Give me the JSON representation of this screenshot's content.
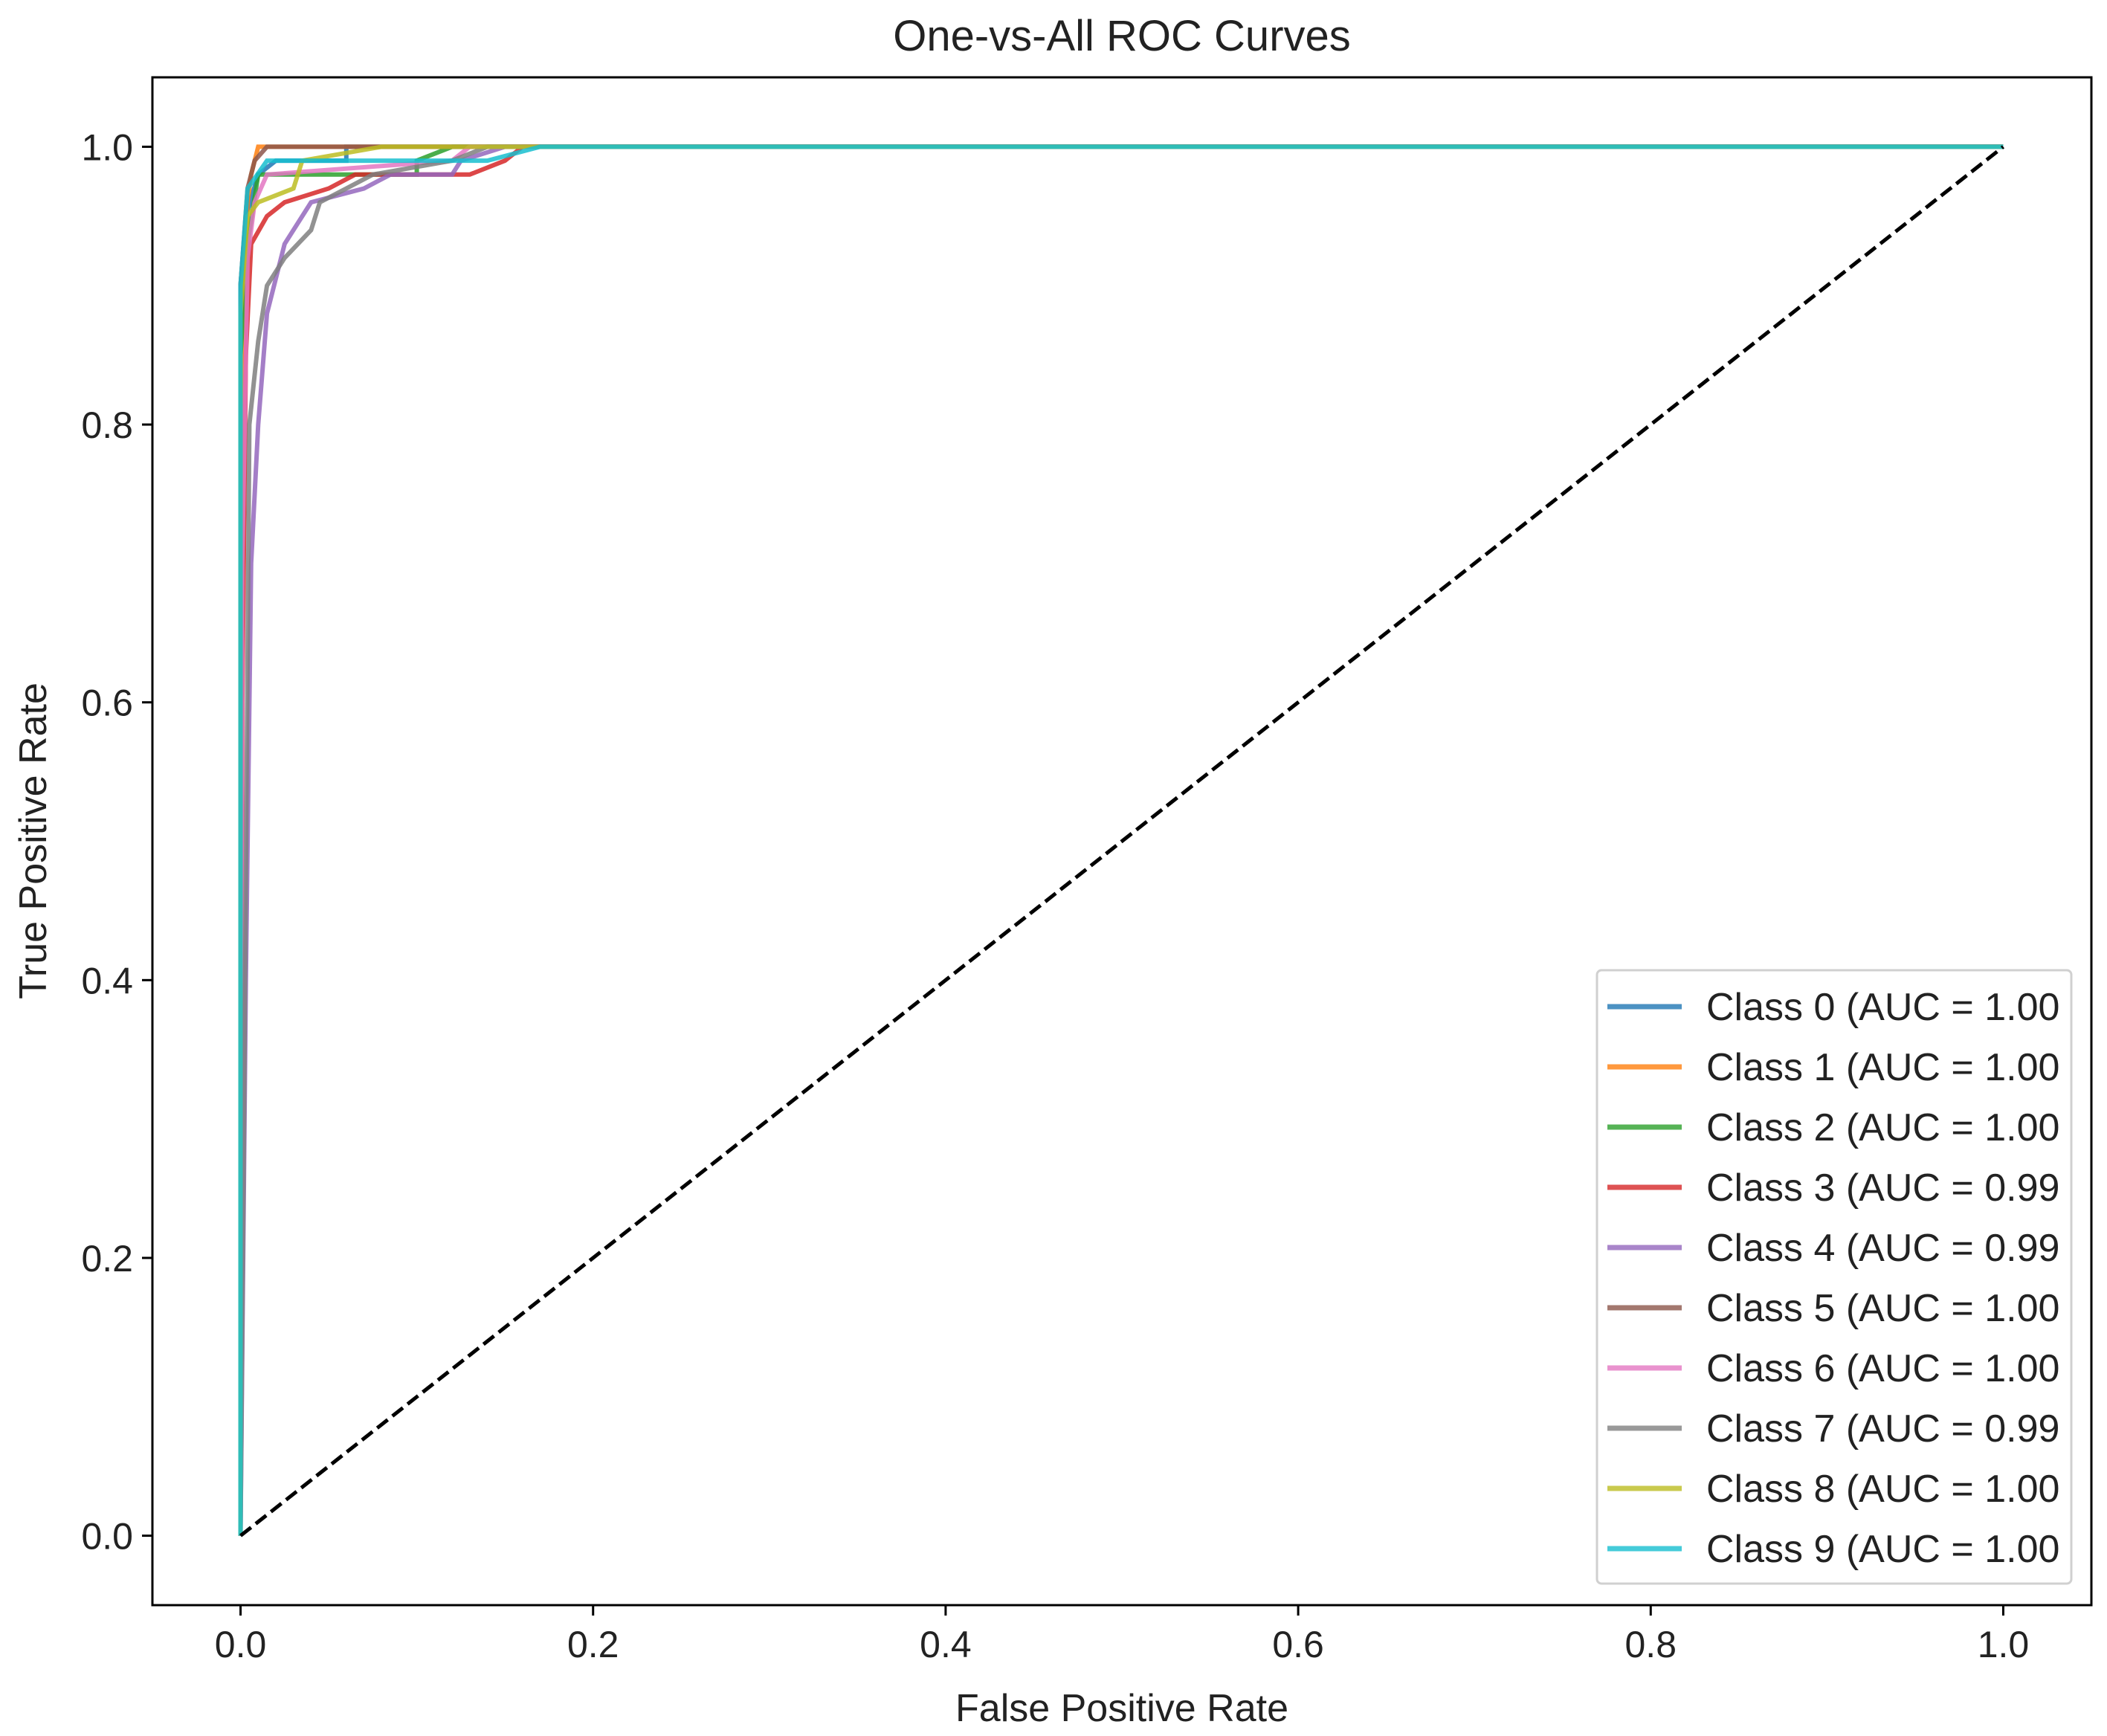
{
  "chart_data": {
    "type": "line",
    "title": "One-vs-All ROC Curves",
    "xlabel": "False Positive Rate",
    "ylabel": "True Positive Rate",
    "xlim": [
      -0.05,
      1.05
    ],
    "ylim": [
      -0.05,
      1.05
    ],
    "xticks": [
      "0.0",
      "0.2",
      "0.4",
      "0.6",
      "0.8",
      "1.0"
    ],
    "yticks": [
      "0.0",
      "0.2",
      "0.4",
      "0.6",
      "0.8",
      "1.0"
    ],
    "grid": false,
    "legend_position": "lower-right",
    "diagonal": {
      "style": "dashed",
      "color": "#000000",
      "x": [
        0,
        1
      ],
      "y": [
        0,
        1
      ]
    },
    "series": [
      {
        "name": "Class 0 (AUC = 1.00",
        "color": "#1f77b4",
        "x": [
          0,
          0,
          0.003,
          0.01,
          0.02,
          0.06,
          0.06,
          1
        ],
        "y": [
          0,
          0.9,
          0.95,
          0.98,
          0.99,
          0.99,
          1,
          1
        ]
      },
      {
        "name": "Class 1 (AUC = 1.00",
        "color": "#ff7f0e",
        "x": [
          0,
          0,
          0.002,
          0.004,
          0.006,
          0.01,
          1
        ],
        "y": [
          0,
          0.75,
          0.9,
          0.96,
          0.98,
          1,
          1
        ]
      },
      {
        "name": "Class 2 (AUC = 1.00",
        "color": "#2ca02c",
        "x": [
          0,
          0,
          0.004,
          0.01,
          0.1,
          0.1,
          0.12,
          1
        ],
        "y": [
          0,
          0.85,
          0.93,
          0.98,
          0.98,
          0.99,
          1,
          1
        ]
      },
      {
        "name": "Class 3 (AUC = 0.99",
        "color": "#d62728",
        "x": [
          0,
          0.001,
          0.003,
          0.006,
          0.015,
          0.025,
          0.05,
          0.065,
          0.13,
          0.15,
          0.16,
          1
        ],
        "y": [
          0,
          0.6,
          0.85,
          0.93,
          0.95,
          0.96,
          0.97,
          0.98,
          0.98,
          0.99,
          1,
          1
        ]
      },
      {
        "name": "Class 4 (AUC = 0.99",
        "color": "#9467bd",
        "x": [
          0,
          0.003,
          0.006,
          0.01,
          0.015,
          0.025,
          0.04,
          0.07,
          0.085,
          0.12,
          0.125,
          0.15,
          1
        ],
        "y": [
          0,
          0.4,
          0.7,
          0.8,
          0.88,
          0.93,
          0.96,
          0.97,
          0.98,
          0.98,
          0.99,
          1,
          1
        ]
      },
      {
        "name": "Class 5 (AUC = 1.00",
        "color": "#8c564b",
        "x": [
          0,
          0,
          0.004,
          0.008,
          0.015,
          1
        ],
        "y": [
          0,
          0.9,
          0.97,
          0.99,
          1,
          1
        ]
      },
      {
        "name": "Class 6 (AUC = 1.00",
        "color": "#e377c2",
        "x": [
          0,
          0.001,
          0.004,
          0.008,
          0.015,
          0.12,
          0.13,
          1
        ],
        "y": [
          0,
          0.7,
          0.92,
          0.96,
          0.98,
          0.99,
          1,
          1
        ]
      },
      {
        "name": "Class 7 (AUC = 0.99",
        "color": "#7f7f7f",
        "x": [
          0,
          0.002,
          0.005,
          0.01,
          0.015,
          0.025,
          0.04,
          0.045,
          0.06,
          0.075,
          0.12,
          0.14,
          1
        ],
        "y": [
          0,
          0.3,
          0.8,
          0.86,
          0.9,
          0.92,
          0.94,
          0.96,
          0.97,
          0.98,
          0.99,
          1,
          1
        ]
      },
      {
        "name": "Class 8 (AUC = 1.00",
        "color": "#bcbd22",
        "x": [
          0,
          0,
          0.004,
          0.01,
          0.03,
          0.035,
          0.08,
          1
        ],
        "y": [
          0,
          0.88,
          0.95,
          0.96,
          0.97,
          0.99,
          1,
          1
        ]
      },
      {
        "name": "Class 9 (AUC = 1.00",
        "color": "#17becf",
        "x": [
          0,
          0,
          0.004,
          0.015,
          0.14,
          0.17,
          1
        ],
        "y": [
          0,
          0.9,
          0.97,
          0.99,
          0.99,
          1,
          1
        ]
      }
    ]
  }
}
